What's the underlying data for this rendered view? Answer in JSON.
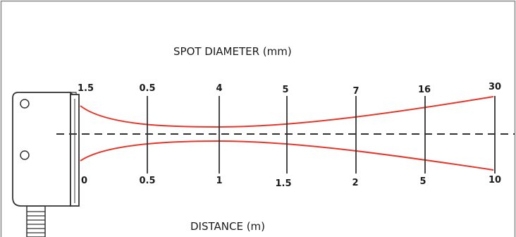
{
  "diagram": {
    "top_caption": "SPOT DIAMETER (mm)",
    "bottom_caption": "DISTANCE (m)",
    "spot_labels": [
      "1.5",
      "0.5",
      "4",
      "5",
      "7",
      "16",
      "30"
    ],
    "distance_labels": [
      "0",
      "0.5",
      "1",
      "1.5",
      "2",
      "5",
      "10"
    ],
    "colors": {
      "frame": "#8a8a8a",
      "beam": "#e8362b",
      "axis": "#333333",
      "sensor_body": "#ffffff",
      "sensor_outline": "#333333"
    }
  }
}
